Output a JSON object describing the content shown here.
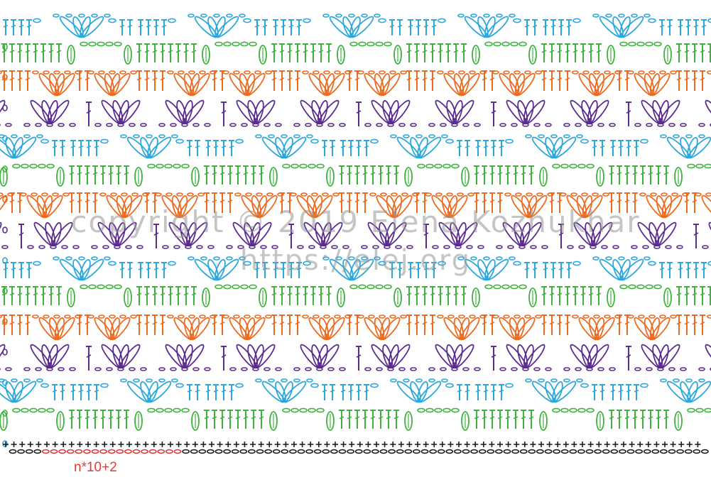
{
  "watermark": {
    "line1": "copyright © 2019 Elena Kozhukhar",
    "line2": "https://elej.org"
  },
  "repeat_formula": "n*10+2",
  "colors": {
    "blue": "#2aa8dd",
    "green": "#3cb33c",
    "orange": "#ee6a1f",
    "purple": "#5b2b91",
    "black": "#1e1e1e",
    "red": "#e23a3a",
    "watermark": "#969696"
  },
  "row_colors": [
    "blue",
    "green",
    "orange",
    "purple",
    "blue",
    "green",
    "orange",
    "purple",
    "blue",
    "green",
    "orange",
    "purple",
    "blue",
    "green"
  ],
  "legend_symbols": {
    "double_crochet": "T",
    "single_crochet": "+",
    "chain": "o",
    "cluster": "shell-fan"
  }
}
